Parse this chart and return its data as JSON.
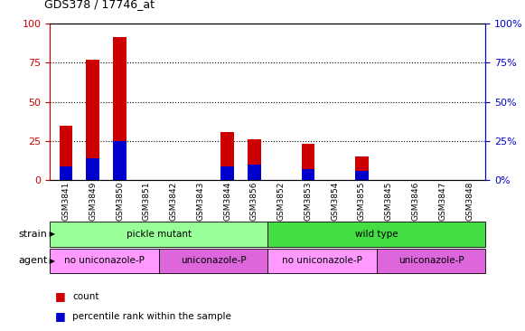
{
  "title": "GDS378 / 17746_at",
  "categories": [
    "GSM3841",
    "GSM3849",
    "GSM3850",
    "GSM3851",
    "GSM3842",
    "GSM3843",
    "GSM3844",
    "GSM3856",
    "GSM3852",
    "GSM3853",
    "GSM3854",
    "GSM3855",
    "GSM3845",
    "GSM3846",
    "GSM3847",
    "GSM3848"
  ],
  "red_values": [
    35,
    77,
    91,
    0,
    0,
    0,
    31,
    26,
    0,
    23,
    0,
    15,
    0,
    0,
    0,
    0
  ],
  "blue_values": [
    9,
    14,
    25,
    0,
    0,
    0,
    9,
    10,
    0,
    7,
    0,
    6,
    0,
    0,
    0,
    0
  ],
  "ylim": [
    0,
    100
  ],
  "yticks": [
    0,
    25,
    50,
    75,
    100
  ],
  "red_color": "#cc0000",
  "blue_color": "#0000cc",
  "bar_width": 0.5,
  "strain_labels": [
    {
      "text": "pickle mutant",
      "start": 0,
      "end": 7,
      "color": "#99ff99"
    },
    {
      "text": "wild type",
      "start": 8,
      "end": 15,
      "color": "#44dd44"
    }
  ],
  "agent_labels": [
    {
      "text": "no uniconazole-P",
      "start": 0,
      "end": 3,
      "color": "#ff99ff"
    },
    {
      "text": "uniconazole-P",
      "start": 4,
      "end": 7,
      "color": "#dd66dd"
    },
    {
      "text": "no uniconazole-P",
      "start": 8,
      "end": 11,
      "color": "#ff99ff"
    },
    {
      "text": "uniconazole-P",
      "start": 12,
      "end": 15,
      "color": "#dd66dd"
    }
  ],
  "grid_color": "black",
  "axis_left_color": "#cc0000",
  "axis_right_color": "#0000cc",
  "bg_color": "#ffffff",
  "plot_bg_color": "#ffffff",
  "tick_label_color_left": "#cc0000",
  "tick_label_color_right": "#0000cc",
  "legend_count_color": "#cc0000",
  "legend_pct_color": "#0000cc",
  "strain_row_label": "strain",
  "agent_row_label": "agent",
  "legend_count": "count",
  "legend_pct": "percentile rank within the sample"
}
